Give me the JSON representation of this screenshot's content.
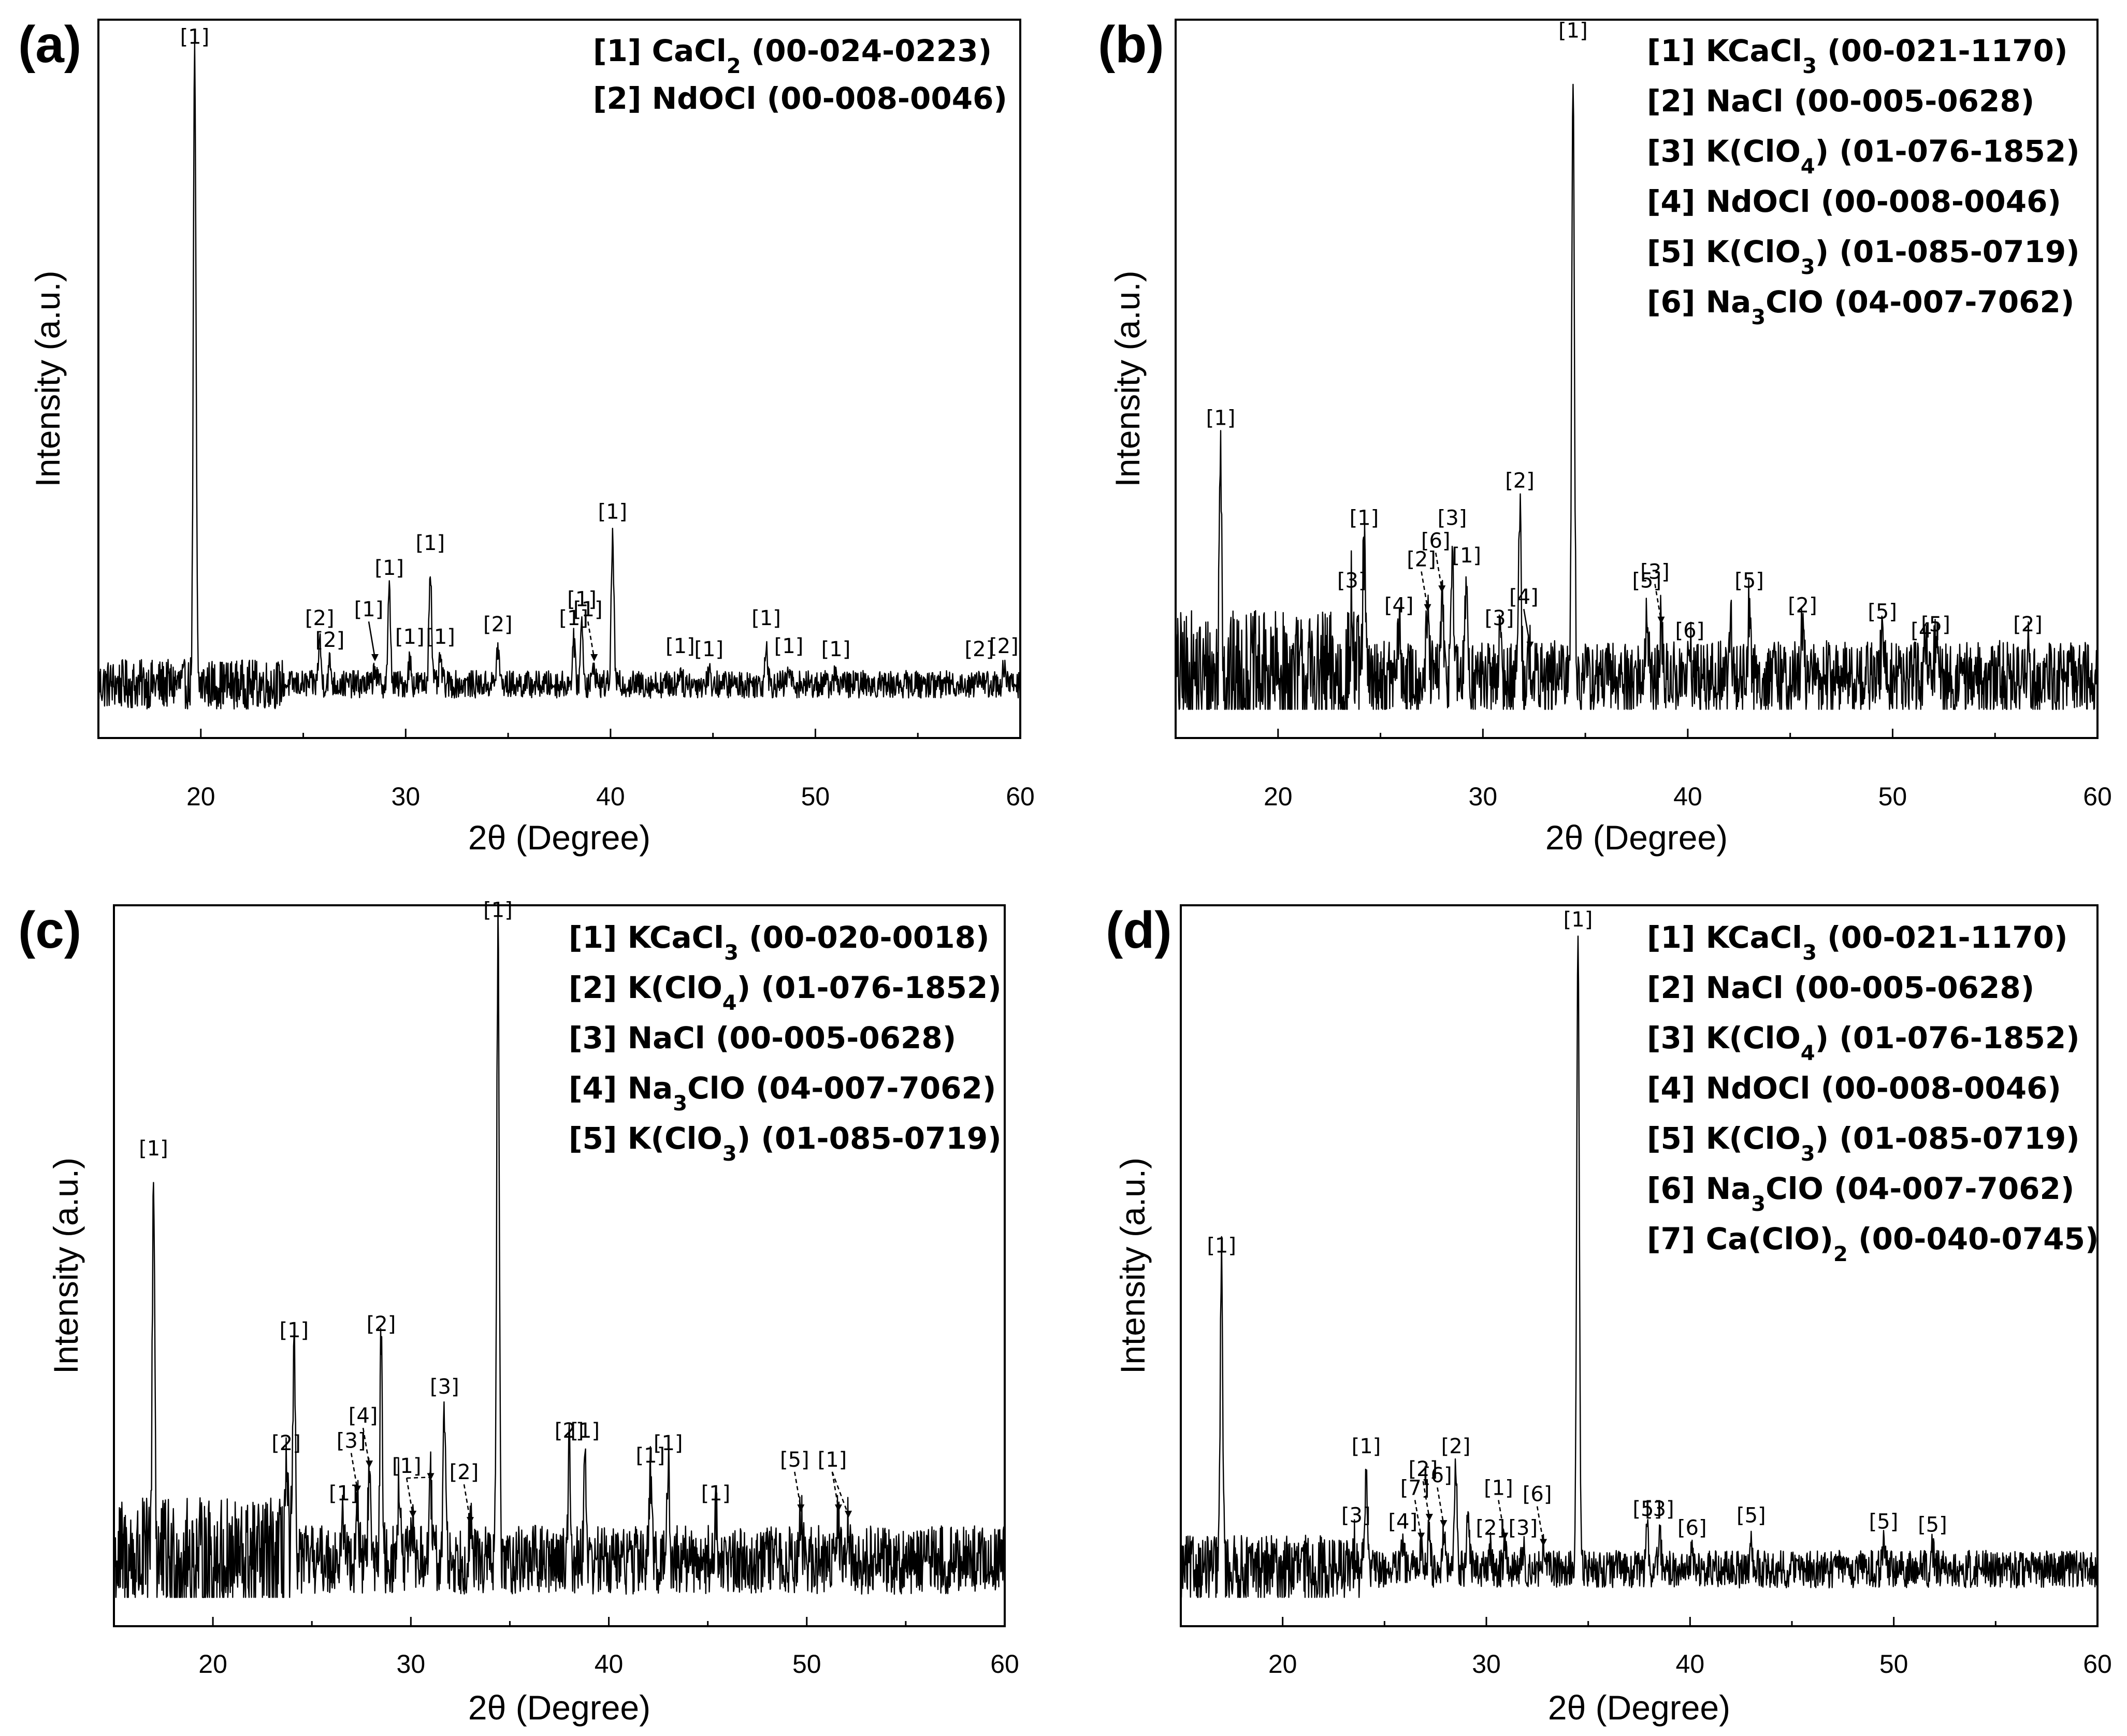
{
  "chart_data": [
    {
      "type": "line",
      "panel": "(a)",
      "xlabel": "2θ (Degree)",
      "ylabel": "Intensity (a.u.)",
      "xlim": [
        15,
        60
      ],
      "xticks": [
        "20",
        "30",
        "40",
        "50",
        "60"
      ],
      "legend": [
        {
          "id": "[1]",
          "phase": "CaCl",
          "sub": "2",
          "tail": "",
          "card": "(00-024-0223)"
        },
        {
          "id": "[2]",
          "phase": "NdOCl",
          "sub": "",
          "tail": "",
          "card": "(00-008-0046)"
        }
      ],
      "noise": 0.022,
      "baseline": 0.04,
      "peaks": [
        {
          "x": 19.7,
          "h": 1.0,
          "label": "[1]"
        },
        {
          "x": 25.8,
          "h": 0.07,
          "label": "[2]"
        },
        {
          "x": 26.3,
          "h": 0.035,
          "label": "[2]"
        },
        {
          "x": 28.5,
          "h": 0.03,
          "label": "[1]",
          "arrow": "solid"
        },
        {
          "x": 29.2,
          "h": 0.15,
          "label": "[1]"
        },
        {
          "x": 30.2,
          "h": 0.04,
          "label": "[1]"
        },
        {
          "x": 31.2,
          "h": 0.19,
          "label": "[1]"
        },
        {
          "x": 31.7,
          "h": 0.04,
          "label": "[1]"
        },
        {
          "x": 34.5,
          "h": 0.06,
          "label": "[2]"
        },
        {
          "x": 38.2,
          "h": 0.07,
          "label": "[1]"
        },
        {
          "x": 38.6,
          "h": 0.1,
          "label": "[1]"
        },
        {
          "x": 39.2,
          "h": 0.03,
          "label": "[1]",
          "arrow": "dash"
        },
        {
          "x": 40.1,
          "h": 0.24,
          "label": "[1]"
        },
        {
          "x": 43.4,
          "h": 0.025,
          "label": "[1]"
        },
        {
          "x": 44.8,
          "h": 0.02,
          "label": "[1]"
        },
        {
          "x": 47.6,
          "h": 0.07,
          "label": "[1]"
        },
        {
          "x": 48.7,
          "h": 0.025,
          "label": "[1]"
        },
        {
          "x": 51.0,
          "h": 0.02,
          "label": "[1]"
        },
        {
          "x": 58.0,
          "h": 0.02,
          "label": "[2]"
        },
        {
          "x": 59.2,
          "h": 0.025,
          "label": "[2]"
        }
      ]
    },
    {
      "type": "line",
      "panel": "(b)",
      "xlabel": "2θ (Degree)",
      "ylabel": "Intensity (a.u.)",
      "xlim": [
        15,
        60
      ],
      "xticks": [
        "20",
        "30",
        "40",
        "50",
        "60"
      ],
      "legend": [
        {
          "id": "[1]",
          "phase": "KCaCl",
          "sub": "3",
          "tail": "",
          "card": "(00-021-1170)"
        },
        {
          "id": "[2]",
          "phase": "NaCl",
          "sub": "",
          "tail": "",
          "card": "(00-005-0628)"
        },
        {
          "id": "[3]",
          "phase": "K(ClO",
          "sub": "4",
          "tail": ")",
          "card": "(01-076-1852)"
        },
        {
          "id": "[4]",
          "phase": "NdOCl",
          "sub": "",
          "tail": "",
          "card": "(00-008-0046)"
        },
        {
          "id": "[5]",
          "phase": "K(ClO",
          "sub": "3",
          "tail": ")",
          "card": "(01-085-0719)"
        },
        {
          "id": "[6]",
          "phase": "Na",
          "sub": "3",
          "tail": "ClO",
          "card": "(04-007-7062)"
        }
      ],
      "noise": 0.06,
      "baseline": 0.05,
      "peaks": [
        {
          "x": 17.2,
          "h": 0.38,
          "label": "[1]"
        },
        {
          "x": 23.6,
          "h": 0.12,
          "label": "[3]"
        },
        {
          "x": 24.2,
          "h": 0.22,
          "label": "[1]"
        },
        {
          "x": 25.9,
          "h": 0.08,
          "label": "[4]"
        },
        {
          "x": 27.3,
          "h": 0.1,
          "label": "[2]",
          "arrow": "dash"
        },
        {
          "x": 28.0,
          "h": 0.13,
          "label": "[6]",
          "arrow": "dash"
        },
        {
          "x": 28.5,
          "h": 0.22,
          "label": "[3]"
        },
        {
          "x": 29.2,
          "h": 0.16,
          "label": "[1]"
        },
        {
          "x": 30.8,
          "h": 0.06,
          "label": "[3]"
        },
        {
          "x": 31.8,
          "h": 0.28,
          "label": "[2]"
        },
        {
          "x": 32.3,
          "h": 0.04,
          "label": "[4]",
          "arrow": "solid"
        },
        {
          "x": 34.4,
          "h": 1.0,
          "label": "[1]"
        },
        {
          "x": 38.0,
          "h": 0.12,
          "label": "[5]"
        },
        {
          "x": 38.7,
          "h": 0.08,
          "label": "[3]",
          "arrow": "dash"
        },
        {
          "x": 40.1,
          "h": 0.04,
          "label": "[6]"
        },
        {
          "x": 42.1,
          "h": 0.09,
          "label": ""
        },
        {
          "x": 43.0,
          "h": 0.12,
          "label": "[5]"
        },
        {
          "x": 45.6,
          "h": 0.08,
          "label": "[2]"
        },
        {
          "x": 49.5,
          "h": 0.07,
          "label": "[5]"
        },
        {
          "x": 51.6,
          "h": 0.04,
          "label": "[4]"
        },
        {
          "x": 52.1,
          "h": 0.05,
          "label": "[5]"
        },
        {
          "x": 56.6,
          "h": 0.05,
          "label": "[2]"
        }
      ]
    },
    {
      "type": "line",
      "panel": "(c)",
      "xlabel": "2θ (Degree)",
      "ylabel": "Intensity (a.u.)",
      "xlim": [
        15,
        60
      ],
      "xticks": [
        "20",
        "30",
        "40",
        "50",
        "60"
      ],
      "legend": [
        {
          "id": "[1]",
          "phase": "KCaCl",
          "sub": "3",
          "tail": "",
          "card": "(00-020-0018)"
        },
        {
          "id": "[2]",
          "phase": "K(ClO",
          "sub": "4",
          "tail": ")",
          "card": "(01-076-1852)"
        },
        {
          "id": "[3]",
          "phase": "NaCl",
          "sub": "",
          "tail": "",
          "card": "(00-005-0628)"
        },
        {
          "id": "[4]",
          "phase": "Na",
          "sub": "3",
          "tail": "ClO",
          "card": "(04-007-7062)"
        },
        {
          "id": "[5]",
          "phase": "K(ClO",
          "sub": "3",
          "tail": ")",
          "card": "(01-085-0719)"
        }
      ],
      "noise": 0.055,
      "baseline": 0.06,
      "peaks": [
        {
          "x": 17.0,
          "h": 0.62,
          "label": "[1]"
        },
        {
          "x": 23.7,
          "h": 0.15,
          "label": "[2]"
        },
        {
          "x": 24.1,
          "h": 0.33,
          "label": "[1]"
        },
        {
          "x": 26.6,
          "h": 0.07,
          "label": "[1]"
        },
        {
          "x": 27.3,
          "h": 0.1,
          "label": "[3]",
          "arrow": "dash"
        },
        {
          "x": 27.9,
          "h": 0.14,
          "label": "[4]",
          "arrow": "dash"
        },
        {
          "x": 28.5,
          "h": 0.34,
          "label": "[2]"
        },
        {
          "x": 29.4,
          "h": 0.12,
          "label": "",
          "arrow": "dash",
          "arrowOf": 8
        },
        {
          "x": 30.1,
          "h": 0.06,
          "label": "[1]",
          "arrow": "dash"
        },
        {
          "x": 31.0,
          "h": 0.12,
          "label": "",
          "arrow": "dash",
          "arrowOf": 8
        },
        {
          "x": 31.7,
          "h": 0.24,
          "label": "[3]"
        },
        {
          "x": 33.0,
          "h": 0.05,
          "label": "[2]",
          "arrow": "dash"
        },
        {
          "x": 34.4,
          "h": 1.0,
          "label": "[1]"
        },
        {
          "x": 38.0,
          "h": 0.17,
          "label": "[2]"
        },
        {
          "x": 38.8,
          "h": 0.17,
          "label": "[1]"
        },
        {
          "x": 42.1,
          "h": 0.13,
          "label": "[1]"
        },
        {
          "x": 43.0,
          "h": 0.15,
          "label": "[1]"
        },
        {
          "x": 45.4,
          "h": 0.07,
          "label": "[1]"
        },
        {
          "x": 49.7,
          "h": 0.07,
          "label": "[5]",
          "arrow": "dash"
        },
        {
          "x": 51.6,
          "h": 0.07,
          "label": "[1]",
          "arrow": "dash"
        },
        {
          "x": 52.1,
          "h": 0.06,
          "label": "",
          "arrow": "dash",
          "arrowOf": 19
        }
      ]
    },
    {
      "type": "line",
      "panel": "(d)",
      "xlabel": "2θ (Degree)",
      "ylabel": "Intensity (a.u.)",
      "xlim": [
        15,
        60
      ],
      "xticks": [
        "20",
        "30",
        "40",
        "50",
        "60"
      ],
      "legend": [
        {
          "id": "[1]",
          "phase": "KCaCl",
          "sub": "3",
          "tail": "",
          "card": "(00-021-1170)"
        },
        {
          "id": "[2]",
          "phase": "NaCl",
          "sub": "",
          "tail": "",
          "card": "(00-005-0628)"
        },
        {
          "id": "[3]",
          "phase": "K(ClO",
          "sub": "4",
          "tail": ")",
          "card": "(01-076-1852)"
        },
        {
          "id": "[4]",
          "phase": "NdOCl",
          "sub": "",
          "tail": "",
          "card": "(00-008-0046)"
        },
        {
          "id": "[5]",
          "phase": "K(ClO",
          "sub": "3",
          "tail": ")",
          "card": "(01-085-0719)"
        },
        {
          "id": "[6]",
          "phase": "Na",
          "sub": "3",
          "tail": "ClO",
          "card": "(04-007-7062)"
        },
        {
          "id": "[7]",
          "phase": "Ca(ClO)",
          "sub": "2",
          "tail": "",
          "card": "(00-040-0745)"
        }
      ],
      "noise": 0.03,
      "baseline": 0.045,
      "peaks": [
        {
          "x": 17.0,
          "h": 0.48,
          "label": "[1]"
        },
        {
          "x": 23.6,
          "h": 0.05,
          "label": "[3]"
        },
        {
          "x": 24.1,
          "h": 0.16,
          "label": "[1]"
        },
        {
          "x": 25.9,
          "h": 0.04,
          "label": "[4]"
        },
        {
          "x": 26.8,
          "h": 0.04,
          "label": "[7]",
          "arrow": "dash"
        },
        {
          "x": 27.2,
          "h": 0.07,
          "label": "[2]",
          "arrow": "dash"
        },
        {
          "x": 27.9,
          "h": 0.06,
          "label": "[6]",
          "arrow": "dash"
        },
        {
          "x": 28.5,
          "h": 0.16,
          "label": "[2]"
        },
        {
          "x": 29.1,
          "h": 0.1,
          "label": "",
          "arrow": "dash",
          "arrowOf": 9
        },
        {
          "x": 30.9,
          "h": 0.04,
          "label": "[1]",
          "arrow": "dash"
        },
        {
          "x": 30.2,
          "h": 0.03,
          "label": "[2]"
        },
        {
          "x": 31.8,
          "h": 0.03,
          "label": "[3]"
        },
        {
          "x": 32.8,
          "h": 0.03,
          "label": "[6]",
          "arrow": "dash"
        },
        {
          "x": 34.5,
          "h": 1.0,
          "label": "[1]"
        },
        {
          "x": 37.9,
          "h": 0.06,
          "label": "[5]"
        },
        {
          "x": 38.5,
          "h": 0.06,
          "label": "[3]"
        },
        {
          "x": 40.1,
          "h": 0.03,
          "label": "[6]"
        },
        {
          "x": 43.0,
          "h": 0.05,
          "label": "[5]"
        },
        {
          "x": 49.5,
          "h": 0.04,
          "label": "[5]"
        },
        {
          "x": 51.9,
          "h": 0.035,
          "label": "[5]"
        }
      ]
    }
  ]
}
